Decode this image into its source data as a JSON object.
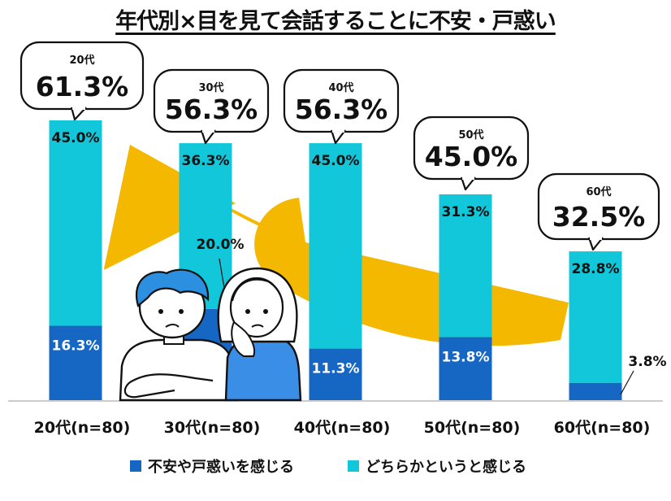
{
  "title": "年代別×目を見て会話することに不安・戸惑い",
  "colors": {
    "series1": "#1567c3",
    "series2": "#12c7d9",
    "arrow": "#f5b800",
    "axis": "#999999"
  },
  "chart_data": {
    "type": "bar",
    "stacked": true,
    "title": "年代別×目を見て会話することに不安・戸惑い",
    "categories": [
      "20代(n=80)",
      "30代(n=80)",
      "40代(n=80)",
      "50代(n=80)",
      "60代(n=80)"
    ],
    "series": [
      {
        "name": "不安や戸惑いを感じる",
        "values": [
          16.3,
          20.0,
          11.3,
          13.8,
          3.8
        ],
        "labels": [
          "16.3%",
          "20.0%",
          "11.3%",
          "13.8%",
          "3.8%"
        ]
      },
      {
        "name": "どちらかというと感じる",
        "values": [
          45.0,
          36.3,
          45.0,
          31.3,
          28.8
        ],
        "labels": [
          "45.0%",
          "36.3%",
          "45.0%",
          "31.3%",
          "28.8%"
        ]
      }
    ],
    "totals": [
      {
        "group": "20代",
        "value": "61.3%"
      },
      {
        "group": "30代",
        "value": "56.3%"
      },
      {
        "group": "40代",
        "value": "56.3%"
      },
      {
        "group": "50代",
        "value": "45.0%"
      },
      {
        "group": "60代",
        "value": "32.5%"
      }
    ],
    "ylim": [
      0,
      61.3
    ],
    "legend_position": "bottom"
  }
}
